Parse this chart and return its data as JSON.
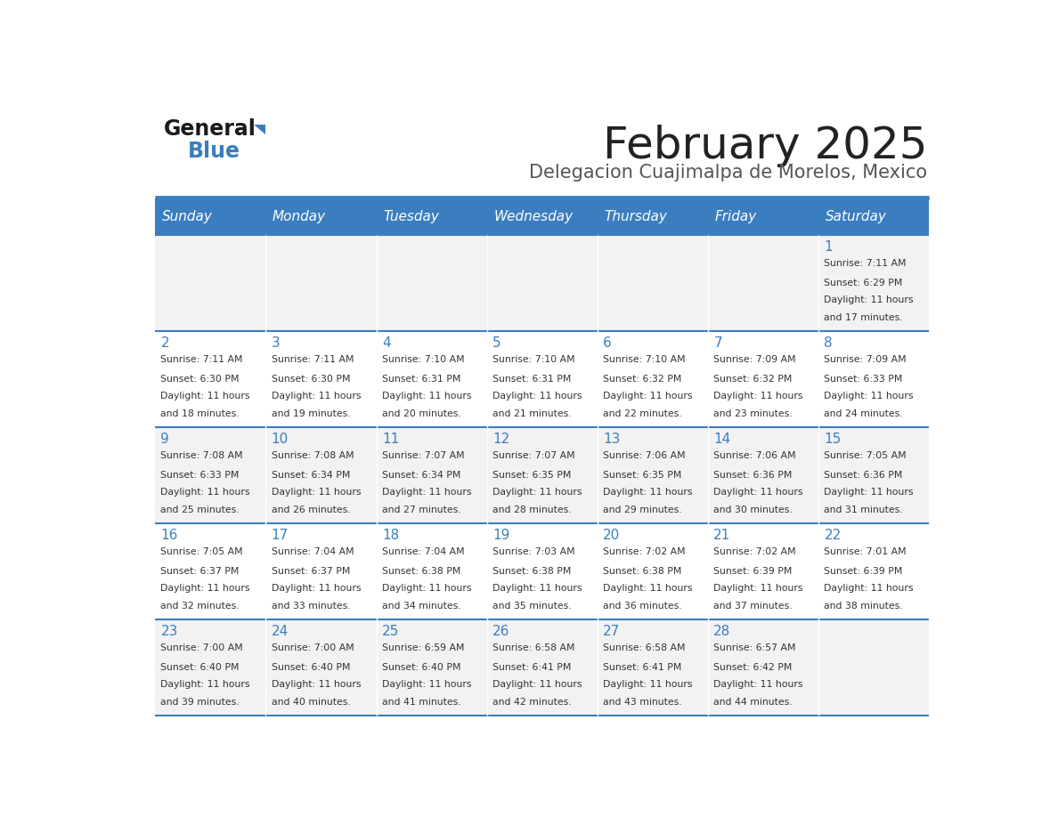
{
  "title": "February 2025",
  "subtitle": "Delegacion Cuajimalpa de Morelos, Mexico",
  "days_of_week": [
    "Sunday",
    "Monday",
    "Tuesday",
    "Wednesday",
    "Thursday",
    "Friday",
    "Saturday"
  ],
  "header_bg": "#3a7ebf",
  "header_text": "#ffffff",
  "cell_bg_even": "#f2f2f2",
  "cell_bg_odd": "#ffffff",
  "day_number_color": "#3a7ebf",
  "cell_text_color": "#333333",
  "title_color": "#222222",
  "subtitle_color": "#555555",
  "divider_color": "#3a7ebf",
  "calendar_data": [
    [
      null,
      null,
      null,
      null,
      null,
      null,
      {
        "day": 1,
        "sunrise": "7:11 AM",
        "sunset": "6:29 PM",
        "daylight": "11 hours and 17 minutes."
      }
    ],
    [
      {
        "day": 2,
        "sunrise": "7:11 AM",
        "sunset": "6:30 PM",
        "daylight": "11 hours and 18 minutes."
      },
      {
        "day": 3,
        "sunrise": "7:11 AM",
        "sunset": "6:30 PM",
        "daylight": "11 hours and 19 minutes."
      },
      {
        "day": 4,
        "sunrise": "7:10 AM",
        "sunset": "6:31 PM",
        "daylight": "11 hours and 20 minutes."
      },
      {
        "day": 5,
        "sunrise": "7:10 AM",
        "sunset": "6:31 PM",
        "daylight": "11 hours and 21 minutes."
      },
      {
        "day": 6,
        "sunrise": "7:10 AM",
        "sunset": "6:32 PM",
        "daylight": "11 hours and 22 minutes."
      },
      {
        "day": 7,
        "sunrise": "7:09 AM",
        "sunset": "6:32 PM",
        "daylight": "11 hours and 23 minutes."
      },
      {
        "day": 8,
        "sunrise": "7:09 AM",
        "sunset": "6:33 PM",
        "daylight": "11 hours and 24 minutes."
      }
    ],
    [
      {
        "day": 9,
        "sunrise": "7:08 AM",
        "sunset": "6:33 PM",
        "daylight": "11 hours and 25 minutes."
      },
      {
        "day": 10,
        "sunrise": "7:08 AM",
        "sunset": "6:34 PM",
        "daylight": "11 hours and 26 minutes."
      },
      {
        "day": 11,
        "sunrise": "7:07 AM",
        "sunset": "6:34 PM",
        "daylight": "11 hours and 27 minutes."
      },
      {
        "day": 12,
        "sunrise": "7:07 AM",
        "sunset": "6:35 PM",
        "daylight": "11 hours and 28 minutes."
      },
      {
        "day": 13,
        "sunrise": "7:06 AM",
        "sunset": "6:35 PM",
        "daylight": "11 hours and 29 minutes."
      },
      {
        "day": 14,
        "sunrise": "7:06 AM",
        "sunset": "6:36 PM",
        "daylight": "11 hours and 30 minutes."
      },
      {
        "day": 15,
        "sunrise": "7:05 AM",
        "sunset": "6:36 PM",
        "daylight": "11 hours and 31 minutes."
      }
    ],
    [
      {
        "day": 16,
        "sunrise": "7:05 AM",
        "sunset": "6:37 PM",
        "daylight": "11 hours and 32 minutes."
      },
      {
        "day": 17,
        "sunrise": "7:04 AM",
        "sunset": "6:37 PM",
        "daylight": "11 hours and 33 minutes."
      },
      {
        "day": 18,
        "sunrise": "7:04 AM",
        "sunset": "6:38 PM",
        "daylight": "11 hours and 34 minutes."
      },
      {
        "day": 19,
        "sunrise": "7:03 AM",
        "sunset": "6:38 PM",
        "daylight": "11 hours and 35 minutes."
      },
      {
        "day": 20,
        "sunrise": "7:02 AM",
        "sunset": "6:38 PM",
        "daylight": "11 hours and 36 minutes."
      },
      {
        "day": 21,
        "sunrise": "7:02 AM",
        "sunset": "6:39 PM",
        "daylight": "11 hours and 37 minutes."
      },
      {
        "day": 22,
        "sunrise": "7:01 AM",
        "sunset": "6:39 PM",
        "daylight": "11 hours and 38 minutes."
      }
    ],
    [
      {
        "day": 23,
        "sunrise": "7:00 AM",
        "sunset": "6:40 PM",
        "daylight": "11 hours and 39 minutes."
      },
      {
        "day": 24,
        "sunrise": "7:00 AM",
        "sunset": "6:40 PM",
        "daylight": "11 hours and 40 minutes."
      },
      {
        "day": 25,
        "sunrise": "6:59 AM",
        "sunset": "6:40 PM",
        "daylight": "11 hours and 41 minutes."
      },
      {
        "day": 26,
        "sunrise": "6:58 AM",
        "sunset": "6:41 PM",
        "daylight": "11 hours and 42 minutes."
      },
      {
        "day": 27,
        "sunrise": "6:58 AM",
        "sunset": "6:41 PM",
        "daylight": "11 hours and 43 minutes."
      },
      {
        "day": 28,
        "sunrise": "6:57 AM",
        "sunset": "6:42 PM",
        "daylight": "11 hours and 44 minutes."
      },
      null
    ]
  ]
}
